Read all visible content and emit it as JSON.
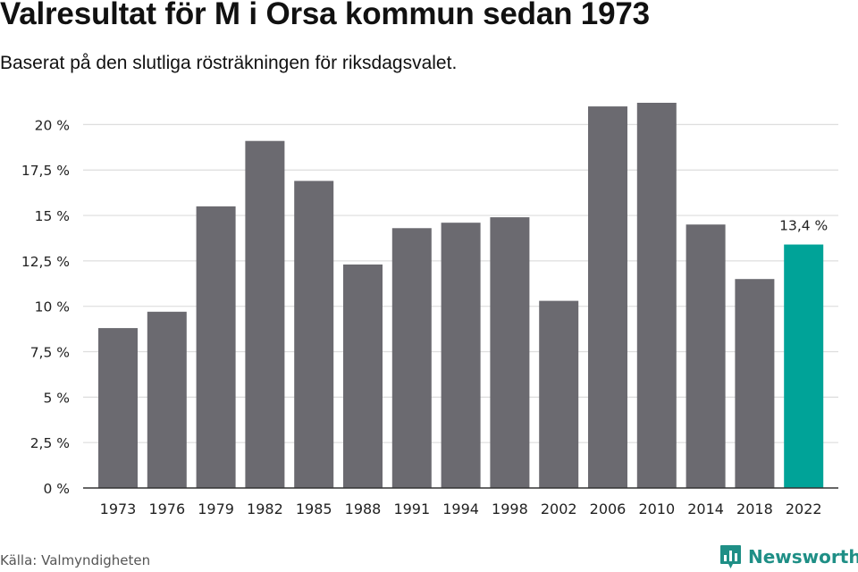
{
  "header": {
    "title": "Valresultat för M i Orsa kommun sedan 1973",
    "subtitle": "Baserat på den slutliga rösträkningen för riksdagsvalet."
  },
  "footer": {
    "source": "Källa: Valmyndigheten",
    "brand": "Newsworthy"
  },
  "colors": {
    "bar": "#6b6a70",
    "highlight": "#00a398",
    "grid": "#dddddd",
    "axis": "#333333",
    "brand": "#1f8f86"
  },
  "chart_data": {
    "type": "bar",
    "title": "Valresultat för M i Orsa kommun sedan 1973",
    "subtitle": "Baserat på den slutliga rösträkningen för riksdagsvalet.",
    "xlabel": "",
    "ylabel": "",
    "categories": [
      "1973",
      "1976",
      "1979",
      "1982",
      "1985",
      "1988",
      "1991",
      "1994",
      "1998",
      "2002",
      "2006",
      "2010",
      "2014",
      "2018",
      "2022"
    ],
    "values": [
      8.8,
      9.7,
      15.5,
      19.1,
      16.9,
      12.3,
      14.3,
      14.6,
      14.9,
      10.3,
      21.0,
      21.2,
      14.5,
      11.5,
      13.4
    ],
    "ylim": [
      0,
      21.2
    ],
    "yticks": [
      0,
      2.5,
      5,
      7.5,
      10,
      12.5,
      15,
      17.5,
      20
    ],
    "ytick_labels": [
      "0 %",
      "2,5 %",
      "5 %",
      "7,5 %",
      "10 %",
      "12,5 %",
      "15 %",
      "17,5 %",
      "20 %"
    ],
    "highlight_index": 14,
    "data_labels": [
      {
        "index": 14,
        "text": "13,4 %"
      }
    ],
    "grid": true,
    "legend": "none"
  }
}
